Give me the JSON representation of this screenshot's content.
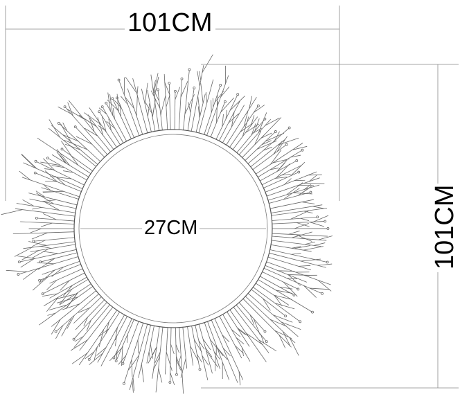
{
  "dimensions": {
    "overall_width": "101CM",
    "overall_height": "101CM",
    "mirror_diameter": "27CM"
  },
  "colors": {
    "line": "#555555",
    "ink": "#000000"
  }
}
